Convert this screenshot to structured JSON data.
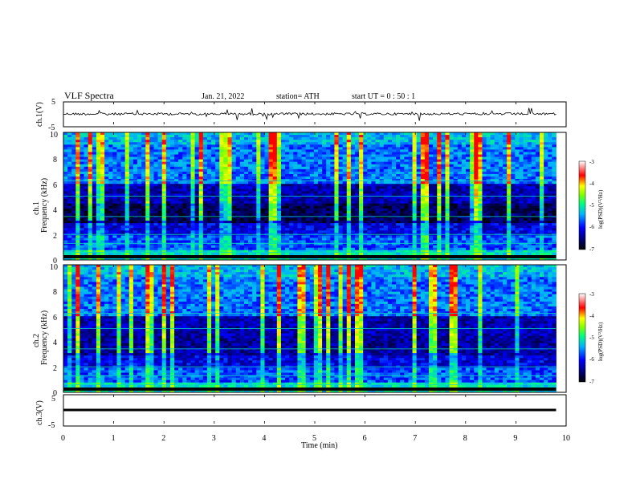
{
  "header": {
    "title": "VLF  Spectra",
    "date": "Jan. 21, 2022",
    "station": "station= ATH",
    "start": "start  UT  =    0  : 50 : 1"
  },
  "chart_data": [
    {
      "type": "line",
      "ylabel": "ch.1(V)",
      "ylim": [
        -5,
        5
      ],
      "yticks": [
        "5",
        "-5"
      ],
      "xlim": [
        0,
        10
      ],
      "note": "noisy waveform around 0 V with spikes"
    },
    {
      "type": "heatmap",
      "ylabel_line1": "ch.1",
      "ylabel_line2": "Frequency  (kHz)",
      "ylim": [
        0,
        10
      ],
      "yticks": [
        "10",
        "8",
        "6",
        "4",
        "2",
        "0"
      ],
      "xlim": [
        0,
        10
      ],
      "colorbar": {
        "label": "log(PSD)(V²/Hz)",
        "range": [
          -7,
          -3
        ],
        "ticks": [
          "-3",
          "-4",
          "-5",
          "-6",
          "-7"
        ]
      }
    },
    {
      "type": "heatmap",
      "ylabel_line1": "ch.2",
      "ylabel_line2": "Frequency  (kHz)",
      "ylim": [
        0,
        10
      ],
      "yticks": [
        "10",
        "8",
        "6",
        "4",
        "2",
        "0"
      ],
      "xlim": [
        0,
        10
      ],
      "colorbar": {
        "label": "log(PSD)(V²/Hz)",
        "range": [
          -7,
          -3
        ],
        "ticks": [
          "-3",
          "-4",
          "-5",
          "-6",
          "-7"
        ]
      }
    },
    {
      "type": "line",
      "ylabel": "ch.3(V)",
      "ylim": [
        -5,
        5
      ],
      "yticks": [
        "5",
        "-5"
      ],
      "xlim": [
        0,
        10
      ],
      "xlabel": "Time  (min)",
      "xticks": [
        "0",
        "1",
        "2",
        "3",
        "4",
        "5",
        "6",
        "7",
        "8",
        "9",
        "10"
      ],
      "note": "flat thick trace near -2 V"
    }
  ],
  "colors": {
    "axis": "#000000",
    "colormap": [
      "#000000",
      "#0000ff",
      "#00b0ff",
      "#00ff80",
      "#ffff00",
      "#ff0000",
      "#ffffff"
    ]
  }
}
